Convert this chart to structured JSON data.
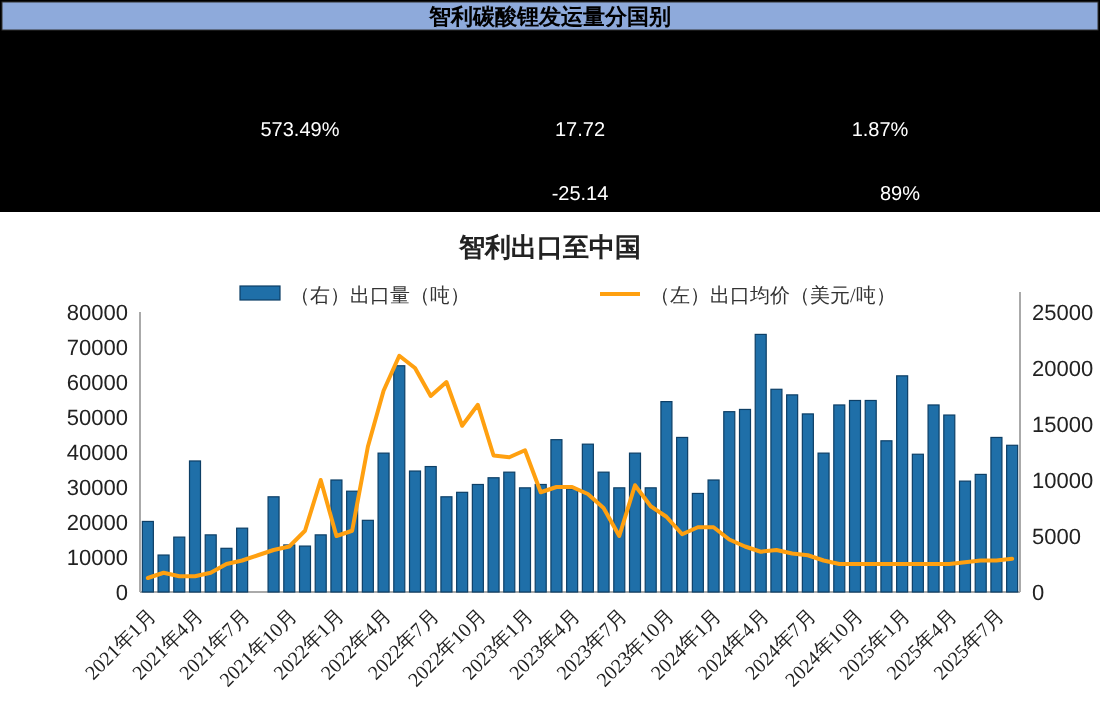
{
  "chart_data": [
    {
      "type": "other",
      "title": "智利碳酸锂发运量分国别",
      "annotations": [
        "573.49%",
        "17.72",
        "1.87%",
        "-25.14",
        "89%"
      ]
    },
    {
      "type": "bar",
      "title": "智利出口至中国",
      "categories": [
        "2021年1月",
        null,
        null,
        "2021年4月",
        null,
        null,
        "2021年7月",
        null,
        null,
        "2021年10月",
        null,
        null,
        "2022年1月",
        null,
        null,
        "2022年4月",
        null,
        null,
        "2022年7月",
        null,
        null,
        "2022年10月",
        null,
        null,
        "2023年1月",
        null,
        null,
        "2023年4月",
        null,
        null,
        "2023年7月",
        null,
        null,
        "2023年10月",
        null,
        null,
        "2024年1月",
        null,
        null,
        "2024年4月",
        null,
        null,
        "2024年7月",
        null,
        null,
        "2024年10月",
        null,
        null,
        "2025年1月",
        null,
        null,
        "2025年4月",
        null,
        null,
        "2025年7月",
        null
      ],
      "series": [
        {
          "name": "（右）出口量（吨）",
          "type": "bar",
          "axis": "y2",
          "color": "#1f6fa8",
          "values": [
            6300,
            3300,
            4900,
            11700,
            5100,
            3900,
            5700,
            null,
            8500,
            4200,
            4100,
            5100,
            10000,
            9000,
            6400,
            12400,
            20200,
            10800,
            11200,
            8500,
            8900,
            9600,
            10200,
            10700,
            9300,
            9600,
            13600,
            9200,
            13200,
            10700,
            9300,
            12400,
            9300,
            17000,
            13800,
            8800,
            10000,
            16100,
            16300,
            23000,
            18100,
            17600,
            15900,
            12400,
            16700,
            17100,
            17100,
            13500,
            19300,
            12300,
            16700,
            15800,
            9900,
            10500,
            13800,
            13100
          ]
        },
        {
          "name": "（左）出口均价（美元/吨）",
          "type": "line",
          "color": "#ffa010",
          "values": [
            4000,
            5500,
            4500,
            4500,
            5500,
            8000,
            9000,
            10500,
            12000,
            13000,
            17500,
            32000,
            16000,
            17500,
            41500,
            57500,
            67500,
            64000,
            56000,
            60000,
            47500,
            53500,
            39000,
            38500,
            40500,
            28500,
            30000,
            30000,
            28000,
            24000,
            16000,
            30500,
            24500,
            21500,
            16500,
            18500,
            18500,
            15000,
            13000,
            11500,
            12000,
            11000,
            10500,
            9000,
            8000,
            8000,
            8000,
            8000,
            8000,
            8000,
            8000,
            8000,
            8500,
            9000,
            9000,
            9500
          ]
        }
      ],
      "ylim": [
        0,
        80000
      ],
      "yticks": [
        0,
        10000,
        20000,
        30000,
        40000,
        50000,
        60000,
        70000,
        80000
      ],
      "y2lim": [
        0,
        25000
      ],
      "y2ticks": [
        0,
        5000,
        10000,
        15000,
        20000,
        25000
      ],
      "legend": "top"
    }
  ]
}
